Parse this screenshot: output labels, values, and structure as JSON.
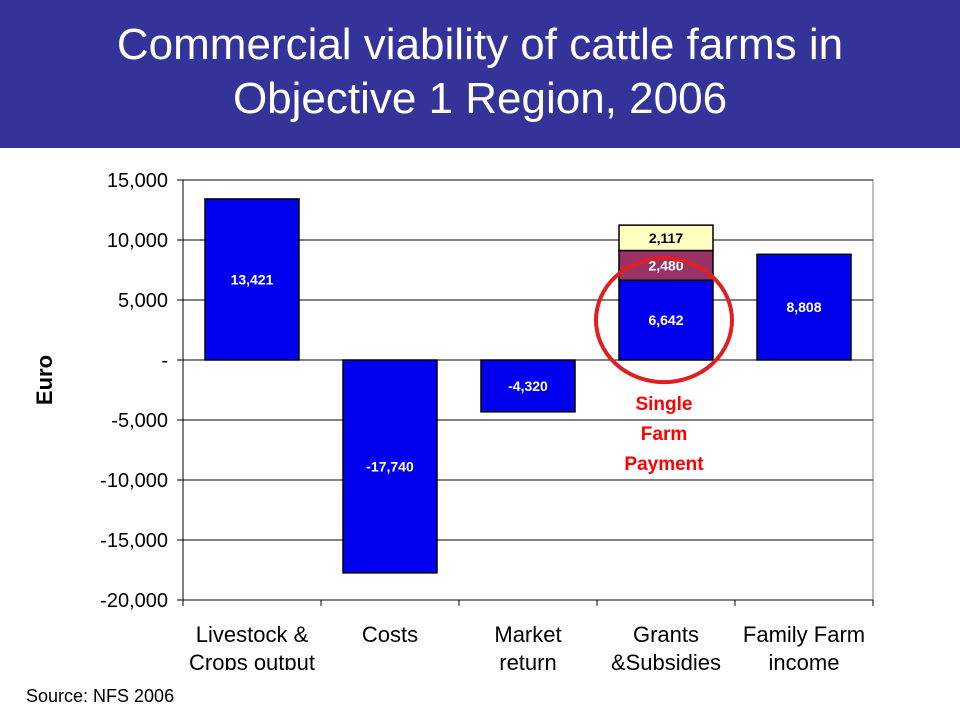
{
  "title": {
    "line1": "Commercial viability of cattle farms in",
    "line2": "Objective 1 Region, 2006"
  },
  "source": "Source:  NFS 2006",
  "annotation": {
    "lines": [
      "Single",
      "Farm",
      "Payment"
    ],
    "color": "#ff0000",
    "circle_color": "#e02020"
  },
  "colors": {
    "header_bg": "#33339a",
    "bar": "#0000ee",
    "segment_top": "#ffffc0",
    "segment_mid": "#993366"
  },
  "chart_data": {
    "type": "bar",
    "ylabel": "Euro",
    "ylim": [
      -20000,
      15000
    ],
    "yticks": [
      15000,
      10000,
      5000,
      0,
      -5000,
      -10000,
      -15000,
      -20000
    ],
    "ytick_labels": [
      "15,000",
      "10,000",
      "5,000",
      "-",
      "-5,000",
      "-10,000",
      "-15,000",
      "-20,000"
    ],
    "grid": true,
    "categories": [
      [
        "Livestock &",
        "Crops output"
      ],
      [
        "Costs"
      ],
      [
        "Market",
        "return"
      ],
      [
        "Grants",
        "&Subsidies"
      ],
      [
        "Family Farm",
        "income"
      ]
    ],
    "bars": [
      {
        "segments": [
          {
            "value": 13421,
            "label": "13,421",
            "color": "#0000ee",
            "text_color": "#ffffff"
          }
        ]
      },
      {
        "segments": [
          {
            "value": -17740,
            "label": "-17,740",
            "color": "#0000ee",
            "text_color": "#ffffff"
          }
        ]
      },
      {
        "segments": [
          {
            "value": -4320,
            "label": "-4,320",
            "color": "#0000ee",
            "text_color": "#ffffff"
          }
        ]
      },
      {
        "segments": [
          {
            "value": 6642,
            "label": "6,642",
            "color": "#0000ee",
            "text_color": "#ffffff"
          },
          {
            "value": 2480,
            "label": "2,480",
            "color": "#993366",
            "text_color": "#ffffff"
          },
          {
            "value": 2117,
            "label": "2,117",
            "color": "#ffffc0",
            "text_color": "#000000"
          }
        ]
      },
      {
        "segments": [
          {
            "value": 8808,
            "label": "8,808",
            "color": "#0000ee",
            "text_color": "#ffffff"
          }
        ]
      }
    ]
  }
}
